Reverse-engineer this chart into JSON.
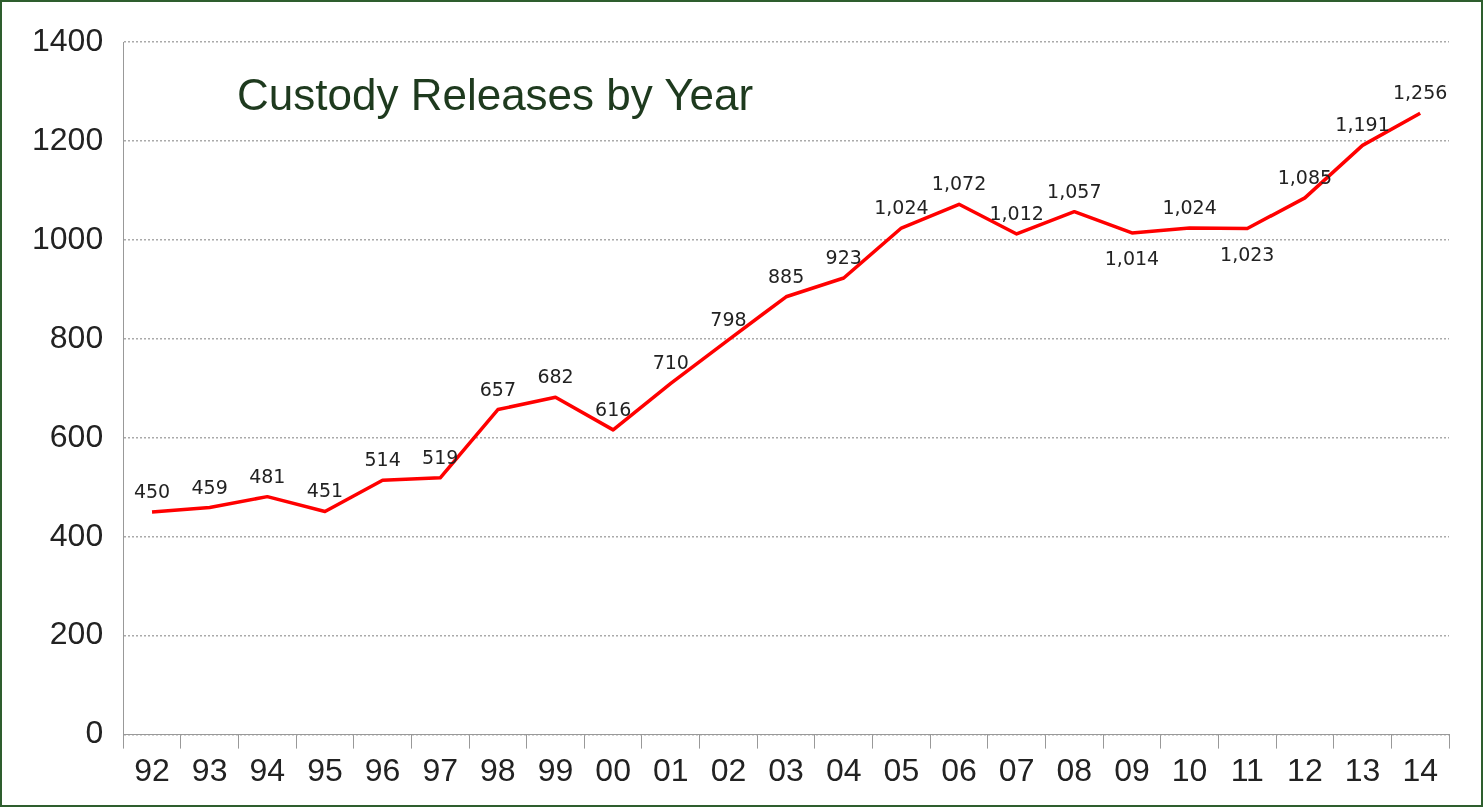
{
  "chart_data": {
    "type": "line",
    "title": "Custody Releases by Year",
    "categories": [
      "92",
      "93",
      "94",
      "95",
      "96",
      "97",
      "98",
      "99",
      "00",
      "01",
      "02",
      "03",
      "04",
      "05",
      "06",
      "07",
      "08",
      "09",
      "10",
      "11",
      "12",
      "13",
      "14"
    ],
    "series": [
      {
        "color": "#ff0000",
        "values": [
          450,
          459,
          481,
          451,
          514,
          519,
          657,
          682,
          616,
          710,
          798,
          885,
          923,
          1024,
          1072,
          1012,
          1057,
          1014,
          1024,
          1023,
          1085,
          1191,
          1256
        ],
        "value_labels": [
          "450",
          "459",
          "481",
          "451",
          "514",
          "519",
          "657",
          "682",
          "616",
          "710",
          "798",
          "885",
          "923",
          "1,024",
          "1,072",
          "1,012",
          "1,057",
          "1,014",
          "1,024",
          "1,023",
          "1,085",
          "1,191",
          "1,256"
        ]
      }
    ],
    "ylim": [
      0,
      1400
    ],
    "yticks": [
      0,
      200,
      400,
      600,
      800,
      1000,
      1200,
      1400
    ],
    "grid": "y",
    "legend": false,
    "marker": "none",
    "line_style": "solid"
  }
}
